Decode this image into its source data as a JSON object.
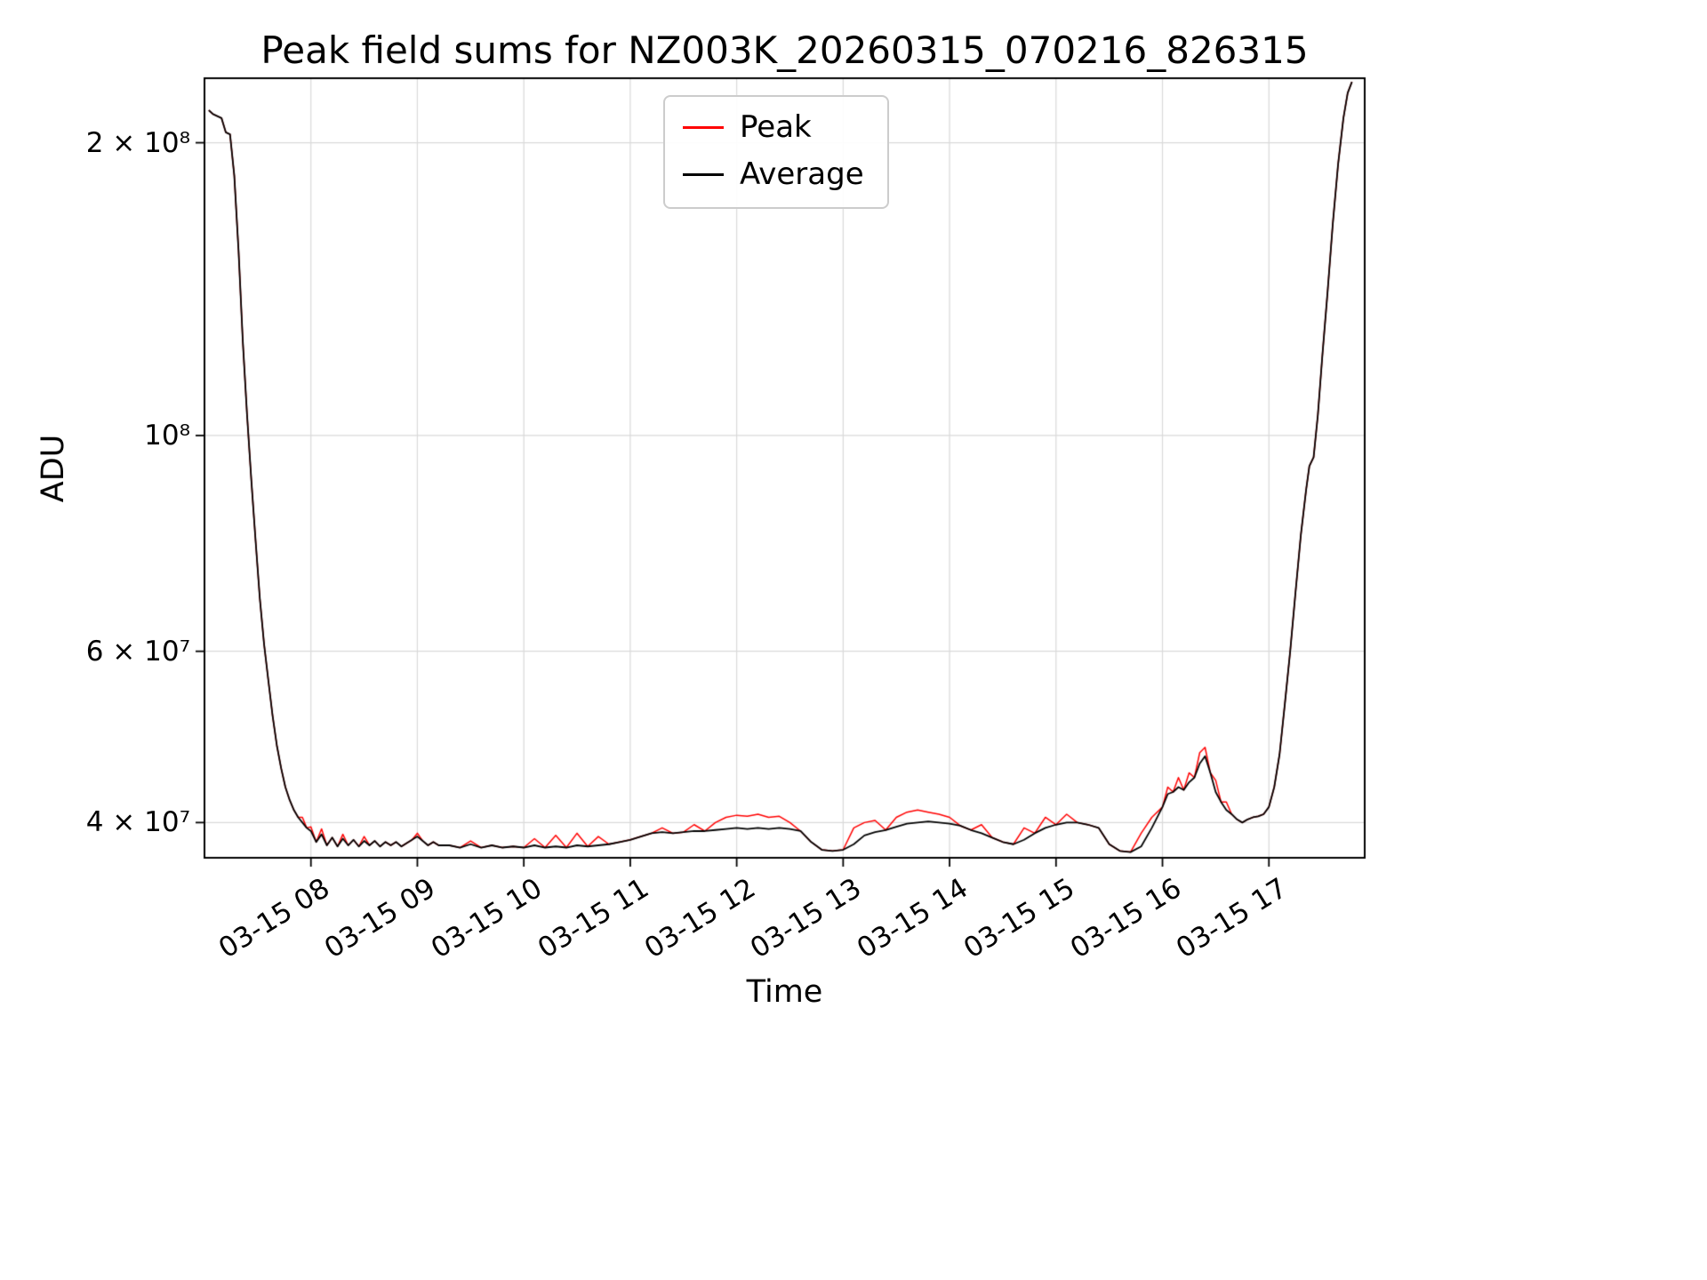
{
  "figure": {
    "background": "#ffffff"
  },
  "chart_data": {
    "type": "line",
    "title": "Peak field sums for NZ003K_20260315_070216_826315",
    "xlabel": "Time",
    "ylabel": "ADU",
    "yscale": "log",
    "grid": true,
    "legend_position": "upper center",
    "x_description": "time of day on 03-15, decimal hours",
    "xlim_hours": [
      7.0,
      17.9
    ],
    "ylim": [
      36800000.0,
      233000000.0
    ],
    "x_ticks": [
      {
        "hour": 8,
        "label": "03-15 08"
      },
      {
        "hour": 9,
        "label": "03-15 09"
      },
      {
        "hour": 10,
        "label": "03-15 10"
      },
      {
        "hour": 11,
        "label": "03-15 11"
      },
      {
        "hour": 12,
        "label": "03-15 12"
      },
      {
        "hour": 13,
        "label": "03-15 13"
      },
      {
        "hour": 14,
        "label": "03-15 14"
      },
      {
        "hour": 15,
        "label": "03-15 15"
      },
      {
        "hour": 16,
        "label": "03-15 16"
      },
      {
        "hour": 17,
        "label": "03-15 17"
      }
    ],
    "y_ticks": [
      {
        "value": 40000000.0,
        "label": "4 × 10⁷"
      },
      {
        "value": 60000000.0,
        "label": "6 × 10⁷"
      },
      {
        "value": 100000000.0,
        "label": "10⁸"
      },
      {
        "value": 200000000.0,
        "label": "2 × 10⁸"
      }
    ],
    "x_hours": [
      7.04,
      7.08,
      7.12,
      7.16,
      7.2,
      7.24,
      7.28,
      7.32,
      7.36,
      7.4,
      7.44,
      7.48,
      7.52,
      7.56,
      7.6,
      7.64,
      7.68,
      7.72,
      7.76,
      7.8,
      7.84,
      7.88,
      7.92,
      7.96,
      8.0,
      8.05,
      8.1,
      8.15,
      8.2,
      8.25,
      8.3,
      8.35,
      8.4,
      8.45,
      8.5,
      8.55,
      8.6,
      8.65,
      8.7,
      8.75,
      8.8,
      8.85,
      8.9,
      8.95,
      9.0,
      9.05,
      9.1,
      9.15,
      9.2,
      9.3,
      9.4,
      9.5,
      9.6,
      9.7,
      9.8,
      9.9,
      10.0,
      10.1,
      10.2,
      10.3,
      10.4,
      10.5,
      10.6,
      10.7,
      10.8,
      10.9,
      11.0,
      11.1,
      11.2,
      11.3,
      11.4,
      11.5,
      11.6,
      11.7,
      11.8,
      11.9,
      12.0,
      12.1,
      12.2,
      12.3,
      12.4,
      12.5,
      12.6,
      12.7,
      12.8,
      12.9,
      13.0,
      13.1,
      13.2,
      13.3,
      13.4,
      13.5,
      13.6,
      13.7,
      13.8,
      13.9,
      14.0,
      14.1,
      14.2,
      14.3,
      14.4,
      14.5,
      14.6,
      14.7,
      14.8,
      14.9,
      15.0,
      15.1,
      15.2,
      15.3,
      15.4,
      15.5,
      15.6,
      15.7,
      15.8,
      15.9,
      16.0,
      16.05,
      16.1,
      16.15,
      16.2,
      16.25,
      16.3,
      16.35,
      16.4,
      16.45,
      16.5,
      16.55,
      16.6,
      16.65,
      16.7,
      16.75,
      16.8,
      16.85,
      16.9,
      16.95,
      17.0,
      17.05,
      17.1,
      17.15,
      17.2,
      17.25,
      17.3,
      17.35,
      17.38,
      17.42,
      17.46,
      17.5,
      17.55,
      17.6,
      17.65,
      17.7,
      17.74,
      17.78
    ],
    "series": [
      {
        "name": "Peak",
        "color": "#ff0000",
        "values": [
          216000000.0,
          214000000.0,
          213000000.0,
          212000000.0,
          205000000.0,
          204000000.0,
          185000000.0,
          155000000.0,
          125000000.0,
          105000000.0,
          90000000.0,
          78000000.0,
          68000000.0,
          61000000.0,
          56000000.0,
          51500000.0,
          48000000.0,
          45500000.0,
          43500000.0,
          42200000.0,
          41200000.0,
          40500000.0,
          40500000.0,
          39500000.0,
          39600000.0,
          38200000.0,
          39400000.0,
          37900000.0,
          38600000.0,
          37800000.0,
          38900000.0,
          37900000.0,
          38400000.0,
          37800000.0,
          38700000.0,
          37900000.0,
          38300000.0,
          37800000.0,
          38200000.0,
          37900000.0,
          38200000.0,
          37800000.0,
          38100000.0,
          38400000.0,
          39000000.0,
          38300000.0,
          37900000.0,
          38200000.0,
          37900000.0,
          37900000.0,
          37700000.0,
          38300000.0,
          37700000.0,
          37900000.0,
          37700000.0,
          37800000.0,
          37700000.0,
          38500000.0,
          37700000.0,
          38800000.0,
          37700000.0,
          39000000.0,
          37800000.0,
          38700000.0,
          38000000.0,
          38200000.0,
          38400000.0,
          38700000.0,
          39000000.0,
          39500000.0,
          39000000.0,
          39100000.0,
          39800000.0,
          39200000.0,
          40000000.0,
          40500000.0,
          40700000.0,
          40600000.0,
          40800000.0,
          40500000.0,
          40600000.0,
          40000000.0,
          39200000.0,
          38200000.0,
          37500000.0,
          37400000.0,
          37500000.0,
          39500000.0,
          40000000.0,
          40200000.0,
          39300000.0,
          40500000.0,
          41000000.0,
          41200000.0,
          41000000.0,
          40800000.0,
          40500000.0,
          39700000.0,
          39300000.0,
          39800000.0,
          38600000.0,
          38200000.0,
          38000000.0,
          39500000.0,
          39000000.0,
          40500000.0,
          39800000.0,
          40800000.0,
          40000000.0,
          39800000.0,
          39500000.0,
          38000000.0,
          37400000.0,
          37300000.0,
          39000000.0,
          40500000.0,
          41500000.0,
          43500000.0,
          43000000.0,
          44500000.0,
          43200000.0,
          45000000.0,
          44500000.0,
          47200000.0,
          47800000.0,
          45000000.0,
          44200000.0,
          42000000.0,
          42000000.0,
          40800000.0,
          40300000.0,
          40000000.0,
          40300000.0,
          40500000.0,
          40600000.0,
          40800000.0,
          41500000.0,
          43500000.0,
          47000000.0,
          53000000.0,
          60000000.0,
          69000000.0,
          79000000.0,
          88000000.0,
          93000000.0,
          95000000.0,
          105000000.0,
          120000000.0,
          140000000.0,
          165000000.0,
          190000000.0,
          212000000.0,
          225000000.0,
          231000000.0
        ]
      },
      {
        "name": "Average",
        "color": "#000000",
        "values": [
          216000000.0,
          214000000.0,
          213000000.0,
          212000000.0,
          205000000.0,
          204000000.0,
          185000000.0,
          155000000.0,
          125000000.0,
          105000000.0,
          90000000.0,
          78000000.0,
          68000000.0,
          61000000.0,
          56000000.0,
          51500000.0,
          48000000.0,
          45500000.0,
          43500000.0,
          42200000.0,
          41200000.0,
          40500000.0,
          40000000.0,
          39500000.0,
          39200000.0,
          38200000.0,
          38900000.0,
          37900000.0,
          38600000.0,
          37800000.0,
          38500000.0,
          37900000.0,
          38400000.0,
          37800000.0,
          38300000.0,
          37900000.0,
          38300000.0,
          37800000.0,
          38200000.0,
          37900000.0,
          38200000.0,
          37800000.0,
          38100000.0,
          38400000.0,
          38700000.0,
          38300000.0,
          37900000.0,
          38200000.0,
          37900000.0,
          37900000.0,
          37700000.0,
          38000000.0,
          37700000.0,
          37900000.0,
          37700000.0,
          37800000.0,
          37700000.0,
          37900000.0,
          37700000.0,
          37800000.0,
          37700000.0,
          37900000.0,
          37800000.0,
          37900000.0,
          38000000.0,
          38200000.0,
          38400000.0,
          38700000.0,
          39000000.0,
          39100000.0,
          39000000.0,
          39100000.0,
          39200000.0,
          39200000.0,
          39300000.0,
          39400000.0,
          39500000.0,
          39400000.0,
          39500000.0,
          39400000.0,
          39500000.0,
          39400000.0,
          39200000.0,
          38200000.0,
          37500000.0,
          37400000.0,
          37500000.0,
          38000000.0,
          38800000.0,
          39100000.0,
          39300000.0,
          39600000.0,
          39900000.0,
          40000000.0,
          40100000.0,
          40000000.0,
          39900000.0,
          39700000.0,
          39300000.0,
          39000000.0,
          38600000.0,
          38200000.0,
          38000000.0,
          38400000.0,
          39000000.0,
          39500000.0,
          39800000.0,
          40000000.0,
          40000000.0,
          39800000.0,
          39500000.0,
          38000000.0,
          37400000.0,
          37300000.0,
          37800000.0,
          39500000.0,
          41500000.0,
          42800000.0,
          43000000.0,
          43500000.0,
          43200000.0,
          44000000.0,
          44500000.0,
          46000000.0,
          46800000.0,
          45000000.0,
          43000000.0,
          42000000.0,
          41200000.0,
          40800000.0,
          40300000.0,
          40000000.0,
          40300000.0,
          40500000.0,
          40600000.0,
          40800000.0,
          41500000.0,
          43500000.0,
          47000000.0,
          53000000.0,
          60000000.0,
          69000000.0,
          79000000.0,
          88000000.0,
          93000000.0,
          95000000.0,
          105000000.0,
          120000000.0,
          140000000.0,
          165000000.0,
          190000000.0,
          212000000.0,
          225000000.0,
          231000000.0
        ]
      }
    ]
  }
}
